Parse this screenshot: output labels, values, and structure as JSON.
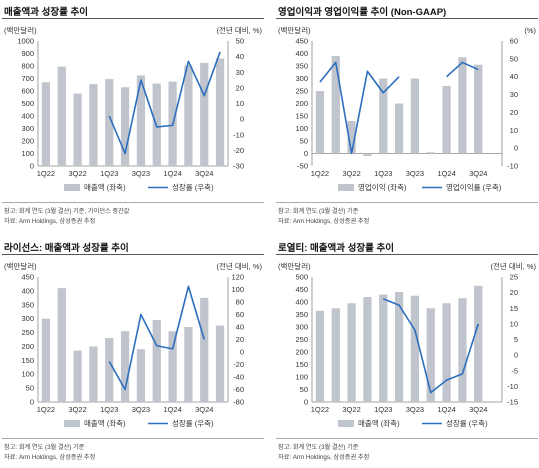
{
  "colors": {
    "bar": "#c0c4cc",
    "line": "#2c6fbe",
    "axis": "#888888"
  },
  "panels": [
    {
      "title": "매출액과 성장률 추이",
      "note1": "참고: 회계 연도 (3월 결산) 기준, 가이던스 중간값",
      "note2": "자료: Arm Holdings, 삼성증권 추정",
      "chart_data": {
        "type": "bar",
        "categories": [
          "1Q22",
          "2Q22",
          "3Q22",
          "4Q22",
          "1Q23",
          "2Q23",
          "3Q23",
          "4Q23",
          "1Q24",
          "2Q24",
          "3Q24",
          "4Q24"
        ],
        "x_tick_labels": [
          "1Q22",
          "",
          "3Q22",
          "",
          "1Q23",
          "",
          "3Q23",
          "",
          "1Q24",
          "",
          "3Q24",
          ""
        ],
        "left_unit": "(백만달러)",
        "right_unit": "(전년 대비, %)",
        "left_ticks": [
          0,
          100,
          200,
          300,
          400,
          500,
          600,
          700,
          800,
          900,
          1000
        ],
        "right_ticks": [
          -30,
          -20,
          -10,
          0,
          10,
          20,
          30,
          40,
          50
        ],
        "left_tick_labels": [
          "0",
          "100",
          "200",
          "300",
          "400",
          "500",
          "600",
          "700",
          "800",
          "900",
          "1000"
        ],
        "right_tick_labels": [
          "-30",
          "-20",
          "-10",
          "0",
          "10",
          "20",
          "30",
          "40",
          "50"
        ],
        "left_range": [
          0,
          1000
        ],
        "right_range": [
          -30,
          50
        ],
        "bars": [
          670,
          795,
          580,
          655,
          695,
          630,
          725,
          660,
          675,
          805,
          825,
          860
        ],
        "line": [
          null,
          null,
          null,
          null,
          2,
          -22,
          25,
          -5,
          -4,
          37,
          15,
          43
        ],
        "legend_bar": "매출액 (좌축)",
        "legend_line": "성장률 (우축)"
      }
    },
    {
      "title": "영업이익과 영업이익률 추이 (Non-GAAP)",
      "note1": "참고: 회계 연도 (3월 결산) 기준",
      "note2": "자료: Arm Holdings, 삼성증권 추정",
      "chart_data": {
        "type": "bar",
        "categories": [
          "1Q22",
          "2Q22",
          "3Q22",
          "4Q22",
          "1Q23",
          "2Q23",
          "3Q23",
          "4Q23",
          "1Q24",
          "2Q24",
          "3Q24",
          "4Q24"
        ],
        "x_tick_labels": [
          "1Q22",
          "",
          "3Q22",
          "",
          "1Q23",
          "",
          "3Q23",
          "",
          "1Q24",
          "",
          "3Q24",
          ""
        ],
        "left_unit": "(백만달러)",
        "right_unit": "(%)",
        "left_ticks": [
          -50,
          0,
          50,
          100,
          150,
          200,
          250,
          300,
          350,
          400,
          450
        ],
        "right_ticks": [
          -10,
          0,
          10,
          20,
          30,
          40,
          50,
          60
        ],
        "left_tick_labels": [
          "-50",
          "0",
          "50",
          "100",
          "150",
          "200",
          "250",
          "300",
          "350",
          "400",
          "450"
        ],
        "right_tick_labels": [
          "-10",
          "0",
          "10",
          "20",
          "30",
          "40",
          "50",
          "60"
        ],
        "left_range": [
          -50,
          450
        ],
        "right_range": [
          -10,
          60
        ],
        "bars": [
          250,
          390,
          130,
          -10,
          300,
          200,
          300,
          5,
          270,
          385,
          355,
          0
        ],
        "line": [
          37,
          48,
          -3,
          43,
          31,
          40,
          null,
          null,
          40,
          48,
          44,
          null
        ],
        "line_segments": [
          [
            0,
            1,
            2,
            3,
            4,
            5
          ],
          [
            8,
            9,
            10
          ]
        ],
        "legend_bar": "영업이익 (좌축)",
        "legend_line": "영업이익률 (우축)"
      }
    },
    {
      "title": "라이선스: 매출액과 성장률 추이",
      "note1": "참고: 회계 연도 (3월 결산) 기준",
      "note2": "자료: Arm Holdings, 삼성증권 추정",
      "chart_data": {
        "type": "bar",
        "categories": [
          "1Q22",
          "2Q22",
          "3Q22",
          "4Q22",
          "1Q23",
          "2Q23",
          "3Q23",
          "4Q23",
          "1Q24",
          "2Q24",
          "3Q24",
          "4Q24"
        ],
        "x_tick_labels": [
          "1Q22",
          "",
          "3Q22",
          "",
          "1Q23",
          "",
          "3Q23",
          "",
          "1Q24",
          "",
          "3Q24",
          ""
        ],
        "left_unit": "(백만달러)",
        "right_unit": "(전년 대비, %)",
        "left_ticks": [
          0,
          50,
          100,
          150,
          200,
          250,
          300,
          350,
          400,
          450
        ],
        "right_ticks": [
          -80,
          -60,
          -40,
          -20,
          0,
          20,
          40,
          60,
          80,
          100,
          120
        ],
        "left_tick_labels": [
          "0",
          "50",
          "100",
          "150",
          "200",
          "250",
          "300",
          "350",
          "400",
          "450"
        ],
        "right_tick_labels": [
          "-80",
          "-60",
          "-40",
          "-20",
          "0",
          "20",
          "40",
          "60",
          "80",
          "100",
          "120"
        ],
        "left_range": [
          0,
          450
        ],
        "right_range": [
          -80,
          120
        ],
        "bars": [
          300,
          410,
          185,
          200,
          230,
          255,
          190,
          295,
          255,
          270,
          375,
          275
        ],
        "line": [
          null,
          null,
          null,
          null,
          -15,
          -60,
          60,
          10,
          5,
          105,
          20,
          null
        ],
        "legend_bar": "매출액 (좌축)",
        "legend_line": "성장률 (우축)"
      }
    },
    {
      "title": "로열티: 매출액과 성장률 추이",
      "note1": "참고: 회계 연도 (3월 결산) 기준",
      "note2": "자료: Arm Holdings, 삼성증권 추정",
      "chart_data": {
        "type": "bar",
        "categories": [
          "1Q22",
          "2Q22",
          "3Q22",
          "4Q22",
          "1Q23",
          "2Q23",
          "3Q23",
          "4Q23",
          "1Q24",
          "2Q24",
          "3Q24",
          "4Q24"
        ],
        "x_tick_labels": [
          "1Q22",
          "",
          "3Q22",
          "",
          "1Q23",
          "",
          "3Q23",
          "",
          "1Q24",
          "",
          "3Q24",
          ""
        ],
        "left_unit": "(백만달러)",
        "right_unit": "(전년 대비, %)",
        "left_ticks": [
          0,
          50,
          100,
          150,
          200,
          250,
          300,
          350,
          400,
          450,
          500
        ],
        "right_ticks": [
          -15,
          -10,
          -5,
          0,
          5,
          10,
          15,
          20,
          25
        ],
        "left_tick_labels": [
          "0",
          "50",
          "100",
          "150",
          "200",
          "250",
          "300",
          "350",
          "400",
          "450",
          "500"
        ],
        "right_tick_labels": [
          "-15",
          "-10",
          "-5",
          "0",
          "5",
          "10",
          "15",
          "20",
          "25"
        ],
        "left_range": [
          0,
          500
        ],
        "right_range": [
          -15,
          25
        ],
        "bars": [
          365,
          375,
          395,
          420,
          430,
          440,
          425,
          375,
          395,
          415,
          465,
          0
        ],
        "line": [
          null,
          null,
          null,
          null,
          18,
          16,
          8,
          -12,
          -8,
          -6,
          10,
          null
        ],
        "legend_bar": "매출액 (좌축)",
        "legend_line": "성장률 (우축)"
      }
    }
  ]
}
